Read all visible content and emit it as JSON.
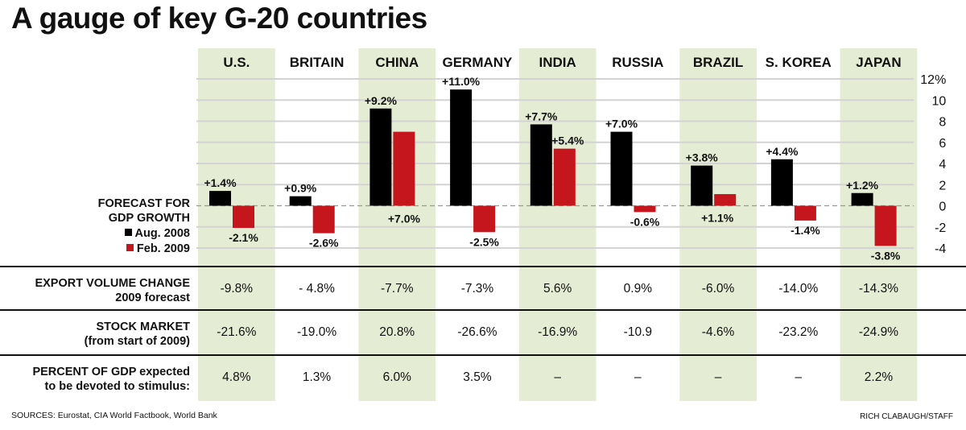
{
  "title": "A gauge of key G-20 countries",
  "colors": {
    "aug": "#000000",
    "feb": "#c4161c",
    "shade": "#e4ecd3",
    "grid": "#d3d3d3"
  },
  "forecast_label": {
    "line1": "FORECAST FOR",
    "line2": "GDP GROWTH"
  },
  "legend": {
    "aug": "Aug. 2008",
    "feb": "Feb. 2009"
  },
  "rows": {
    "export": {
      "line1": "EXPORT VOLUME CHANGE",
      "line2": "2009 forecast"
    },
    "stock": {
      "line1": "STOCK MARKET",
      "line2": "(from start of 2009)"
    },
    "stimulus": {
      "line1": "PERCENT OF GDP expected",
      "line2": "to be devoted to stimulus:"
    }
  },
  "chart_data": {
    "type": "bar",
    "categories": [
      "U.S.",
      "BRITAIN",
      "CHINA",
      "GERMANY",
      "INDIA",
      "RUSSIA",
      "BRAZIL",
      "S. KOREA",
      "JAPAN"
    ],
    "series": [
      {
        "name": "Aug. 2008",
        "values": [
          1.4,
          0.9,
          9.2,
          11.0,
          7.7,
          7.0,
          3.8,
          4.4,
          1.2
        ],
        "labels": [
          "+1.4%",
          "+0.9%",
          "+9.2%",
          "+11.0%",
          "+7.7%",
          "+7.0%",
          "+3.8%",
          "+4.4%",
          "+1.2%"
        ]
      },
      {
        "name": "Feb. 2009",
        "values": [
          -2.1,
          -2.6,
          7.0,
          -2.5,
          5.4,
          -0.6,
          1.1,
          -1.4,
          -3.8
        ],
        "labels": [
          "-2.1%",
          "-2.6%",
          "+7.0%",
          "-2.5%",
          "+5.4%",
          "-0.6%",
          "+1.1%",
          "-1.4%",
          "-3.8%"
        ]
      }
    ],
    "ylabel": "FORECAST FOR GDP GROWTH",
    "ylim": [
      -4,
      12
    ],
    "yticks": [
      "12%",
      "10",
      "8",
      "6",
      "4",
      "2",
      "0",
      "-2",
      "-4"
    ],
    "grid": true,
    "shaded_categories": [
      "U.S.",
      "CHINA",
      "INDIA",
      "BRAZIL",
      "JAPAN"
    ],
    "table": {
      "export_volume_change": [
        "-9.8%",
        "- 4.8%",
        "-7.7%",
        "-7.3%",
        "5.6%",
        "0.9%",
        "-6.0%",
        "-14.0%",
        "-14.3%"
      ],
      "stock_market": [
        "-21.6%",
        "-19.0%",
        "20.8%",
        "-26.6%",
        "-16.9%",
        "-10.9",
        "-4.6%",
        "-23.2%",
        "-24.9%"
      ],
      "stimulus_percent": [
        "4.8%",
        "1.3%",
        "6.0%",
        "3.5%",
        "–",
        "–",
        "–",
        "–",
        "2.2%"
      ]
    }
  },
  "sources": "SOURCES: Eurostat, CIA World Factbook, World Bank",
  "credit": "RICH CLABAUGH/STAFF"
}
